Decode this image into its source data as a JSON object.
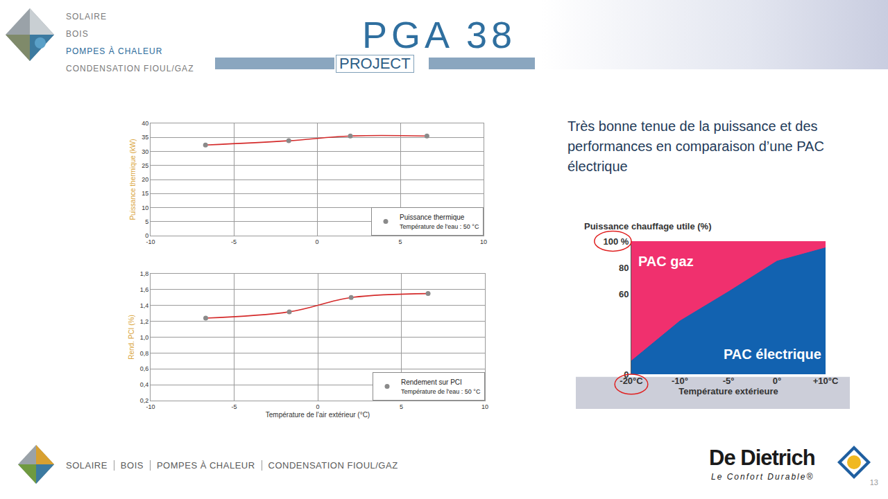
{
  "slide": {
    "header_menu": [
      "SOLAIRE",
      "BOIS",
      "POMPES À CHALEUR",
      "CONDENSATION FIOUL/GAZ"
    ],
    "header_highlight": "POMPES À CHALEUR",
    "project_title": "PGA 38",
    "project_subtitle": "PROJECT",
    "text": "Très bonne tenue de la puissance et des performances en comparaison d’une PAC électrique",
    "footer_menu": [
      "SOLAIRE",
      "BOIS",
      "POMPES À CHALEUR",
      "CONDENSATION FIOUL/GAZ"
    ],
    "brand": "De Dietrich",
    "tagline": "Le Confort Durable®",
    "page": 13
  },
  "chart_data": [
    {
      "type": "line",
      "y_label": "Puissance thermique (kW)",
      "x": [
        -6.7,
        -1.7,
        2.0,
        6.6
      ],
      "series": [
        {
          "name": "Puissance thermique",
          "subtitle": "Température de l'eau : 50 °C",
          "color": "#d42a2a",
          "marker": "circle",
          "line_style": "solid",
          "values": [
            32.3,
            33.8,
            35.5,
            35.5
          ]
        }
      ],
      "xlim": [
        -10,
        10
      ],
      "xticks": [
        -10,
        -5,
        0,
        5,
        10
      ],
      "ylim": [
        0,
        40
      ],
      "yticks": [
        0,
        5,
        10,
        15,
        20,
        25,
        30,
        35,
        40
      ],
      "grid": true,
      "legend": "bottom right"
    },
    {
      "type": "line",
      "x_label": "Température de l'air extérieur (°C)",
      "y_label": "Rend. PCI (%)",
      "x": [
        -6.7,
        -1.7,
        2.0,
        6.6
      ],
      "series": [
        {
          "name": "Rendement sur PCI",
          "subtitle": "Température de l'eau : 50 °C",
          "color": "#d42a2a",
          "marker": "circle",
          "line_style": "solid",
          "values": [
            1.24,
            1.32,
            1.5,
            1.55
          ]
        }
      ],
      "xlim": [
        -10,
        10
      ],
      "xticks": [
        -10,
        -5,
        0,
        5,
        10
      ],
      "ylim": [
        0.2,
        1.8
      ],
      "yticks": [
        {
          "value": 0.2,
          "label": "0,2"
        },
        {
          "value": 0.4,
          "label": "0,4"
        },
        {
          "value": 0.6,
          "label": "0,6"
        },
        {
          "value": 0.8,
          "label": "0,8"
        },
        {
          "value": 1.0,
          "label": "1,0"
        },
        {
          "value": 1.2,
          "label": "1,2"
        },
        {
          "value": 1.4,
          "label": "1,4"
        },
        {
          "value": 1.6,
          "label": "1,6"
        },
        {
          "value": 1.8,
          "label": "1,8"
        }
      ],
      "grid": true,
      "legend": "bottom right"
    },
    {
      "type": "area",
      "y_label": "Puissance chauffage utile (%)",
      "x_label": "Température extérieure",
      "categories": [
        "-20°C",
        "-10°",
        "-5°",
        "0°",
        "+10°C"
      ],
      "series": [
        {
          "name": "PAC gaz",
          "color": "#f0306e",
          "values": [
            100,
            100,
            100,
            100,
            100
          ]
        },
        {
          "name": "PAC électrique",
          "color": "#1262b0",
          "values": [
            10,
            40,
            62,
            85,
            95
          ]
        }
      ],
      "ylim": [
        0,
        100
      ],
      "yticks": [
        0,
        60,
        80,
        {
          "value": 100,
          "label": "100 %"
        }
      ],
      "grid": false
    }
  ]
}
